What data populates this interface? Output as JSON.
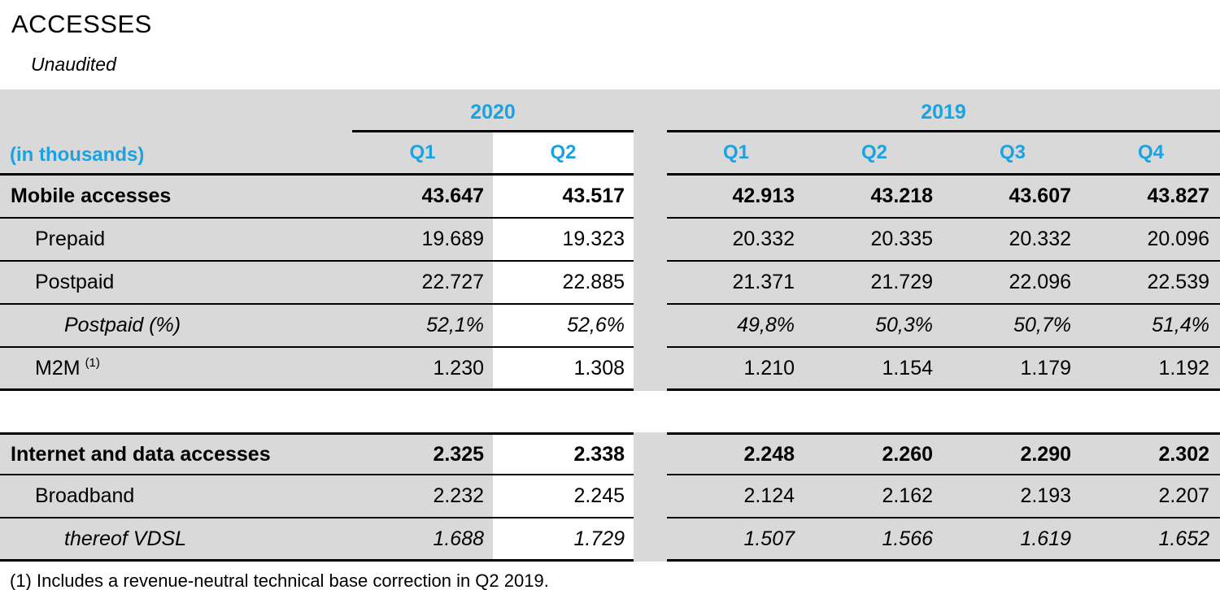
{
  "page": {
    "title": "ACCESSES",
    "subtitle": "Unaudited",
    "footnote": "(1) Includes a revenue-neutral technical base correction in Q2 2019."
  },
  "colors": {
    "header_blue": "#1aa3e2",
    "row_gray": "#d9d9d9",
    "highlight_column_bg": "#ffffff",
    "border": "#000000"
  },
  "table": {
    "unit_label": "(in thousands)",
    "year_groups": [
      {
        "label": "2020",
        "quarters": [
          "Q1",
          "Q2"
        ]
      },
      {
        "label": "2019",
        "quarters": [
          "Q1",
          "Q2",
          "Q3",
          "Q4"
        ]
      }
    ],
    "highlighted_column": "2020 Q2",
    "rows": [
      {
        "label": "Mobile accesses",
        "style": "bold",
        "indent": 0,
        "v2020": [
          "43.647",
          "43.517"
        ],
        "v2019": [
          "42.913",
          "43.218",
          "43.607",
          "43.827"
        ]
      },
      {
        "label": "Prepaid",
        "style": "normal",
        "indent": 1,
        "v2020": [
          "19.689",
          "19.323"
        ],
        "v2019": [
          "20.332",
          "20.335",
          "20.332",
          "20.096"
        ]
      },
      {
        "label": "Postpaid",
        "style": "normal",
        "indent": 1,
        "v2020": [
          "22.727",
          "22.885"
        ],
        "v2019": [
          "21.371",
          "21.729",
          "22.096",
          "22.539"
        ]
      },
      {
        "label": "Postpaid (%)",
        "style": "italic",
        "indent": 2,
        "v2020": [
          "52,1%",
          "52,6%"
        ],
        "v2019": [
          "49,8%",
          "50,3%",
          "50,7%",
          "51,4%"
        ]
      },
      {
        "label": "M2M",
        "sup": "(1)",
        "style": "normal",
        "indent": 1,
        "v2020": [
          "1.230",
          "1.308"
        ],
        "v2019": [
          "1.210",
          "1.154",
          "1.179",
          "1.192"
        ]
      },
      {
        "type": "gap"
      },
      {
        "label": "Internet and data accesses",
        "style": "bold",
        "indent": 0,
        "v2020": [
          "2.325",
          "2.338"
        ],
        "v2019": [
          "2.248",
          "2.260",
          "2.290",
          "2.302"
        ]
      },
      {
        "label": "Broadband",
        "style": "normal",
        "indent": 1,
        "v2020": [
          "2.232",
          "2.245"
        ],
        "v2019": [
          "2.124",
          "2.162",
          "2.193",
          "2.207"
        ]
      },
      {
        "label": "thereof VDSL",
        "style": "italic",
        "indent": 2,
        "v2020": [
          "1.688",
          "1.729"
        ],
        "v2019": [
          "1.507",
          "1.566",
          "1.619",
          "1.652"
        ]
      }
    ]
  }
}
